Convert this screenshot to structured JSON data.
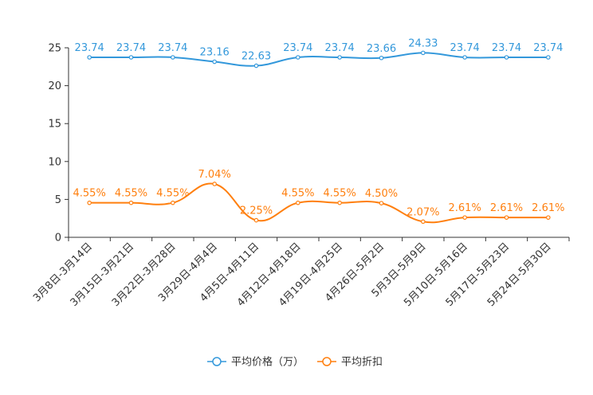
{
  "chart_data": {
    "type": "line",
    "title": "",
    "xlabel": "",
    "ylabel": "",
    "ylim": [
      0,
      25
    ],
    "yticks": [
      0,
      5,
      10,
      15,
      20,
      25
    ],
    "grid": false,
    "legend_position": "bottom-center",
    "categories": [
      "3月8日-3月14日",
      "3月15日-3月21日",
      "3月22日-3月28日",
      "3月29日-4月4日",
      "4月5日-4月11日",
      "4月12日-4月18日",
      "4月19日-4月25日",
      "4月26日-5月2日",
      "5月3日-5月9日",
      "5月10日-5月16日",
      "5月17日-5月23日",
      "5月24日-5月30日"
    ],
    "series": [
      {
        "name": "平均价格（万）",
        "color": "#3398DB",
        "values": [
          23.74,
          23.74,
          23.74,
          23.16,
          22.63,
          23.74,
          23.74,
          23.66,
          24.33,
          23.74,
          23.74,
          23.74
        ],
        "labels": [
          "23.74",
          "23.74",
          "23.74",
          "23.16",
          "22.63",
          "23.74",
          "23.74",
          "23.66",
          "24.33",
          "23.74",
          "23.74",
          "23.74"
        ]
      },
      {
        "name": "平均折扣",
        "color": "#FF7F0E",
        "values": [
          4.55,
          4.55,
          4.55,
          7.04,
          2.25,
          4.55,
          4.55,
          4.5,
          2.07,
          2.61,
          2.61,
          2.61
        ],
        "labels": [
          "4.55%",
          "4.55%",
          "4.55%",
          "7.04%",
          "2.25%",
          "4.55%",
          "4.55%",
          "4.50%",
          "2.07%",
          "2.61%",
          "2.61%",
          "2.61%"
        ]
      }
    ]
  }
}
